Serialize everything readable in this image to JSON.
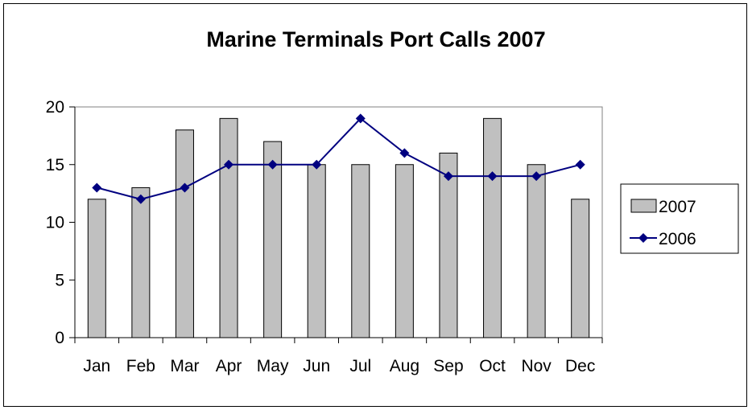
{
  "chart_data": {
    "type": "bar",
    "title": "Marine Terminals Port Calls 2007",
    "categories": [
      "Jan",
      "Feb",
      "Mar",
      "Apr",
      "May",
      "Jun",
      "Jul",
      "Aug",
      "Sep",
      "Oct",
      "Nov",
      "Dec"
    ],
    "series": [
      {
        "name": "2007",
        "type": "bar",
        "color": "#c0c0c0",
        "values": [
          12,
          13,
          18,
          19,
          17,
          15,
          15,
          15,
          16,
          19,
          15,
          12
        ]
      },
      {
        "name": "2006",
        "type": "line",
        "color": "#000080",
        "values": [
          13,
          12,
          13,
          15,
          15,
          15,
          19,
          16,
          14,
          14,
          14,
          15
        ]
      }
    ],
    "ylim": [
      0,
      20
    ],
    "yticks": [
      "0",
      "5",
      "10",
      "15",
      "20"
    ],
    "xlabel": "",
    "ylabel": "",
    "grid": false,
    "legend_position": "right"
  }
}
